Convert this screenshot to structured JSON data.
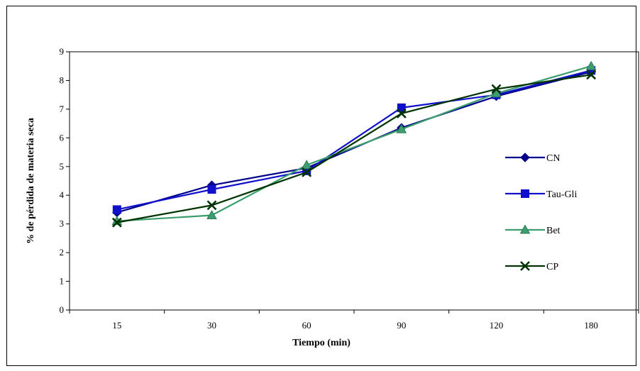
{
  "chart_data": {
    "type": "line",
    "title": "",
    "xlabel": "Tiempo (min)",
    "ylabel": "% de pérdida de materia seca",
    "categories": [
      "15",
      "30",
      "60",
      "90",
      "120",
      "180"
    ],
    "ylim": [
      0,
      9
    ],
    "yticks": [
      "0",
      "1",
      "2",
      "3",
      "4",
      "5",
      "6",
      "7",
      "8",
      "9"
    ],
    "grid": false,
    "legend_position": "right",
    "series": [
      {
        "name": "CN",
        "values": [
          3.4,
          4.35,
          4.95,
          6.35,
          7.45,
          8.3
        ],
        "color": "#00008B",
        "marker": "diamond"
      },
      {
        "name": "Tau-Gli",
        "values": [
          3.5,
          4.2,
          4.85,
          7.05,
          7.5,
          8.35
        ],
        "color": "#1010CC",
        "marker": "square"
      },
      {
        "name": "Bet",
        "values": [
          3.1,
          3.3,
          5.05,
          6.3,
          7.55,
          8.5
        ],
        "color": "#3C9E6E",
        "marker": "triangle"
      },
      {
        "name": "CP",
        "values": [
          3.05,
          3.65,
          4.8,
          6.85,
          7.7,
          8.2
        ],
        "color": "#003300",
        "marker": "x"
      }
    ]
  }
}
